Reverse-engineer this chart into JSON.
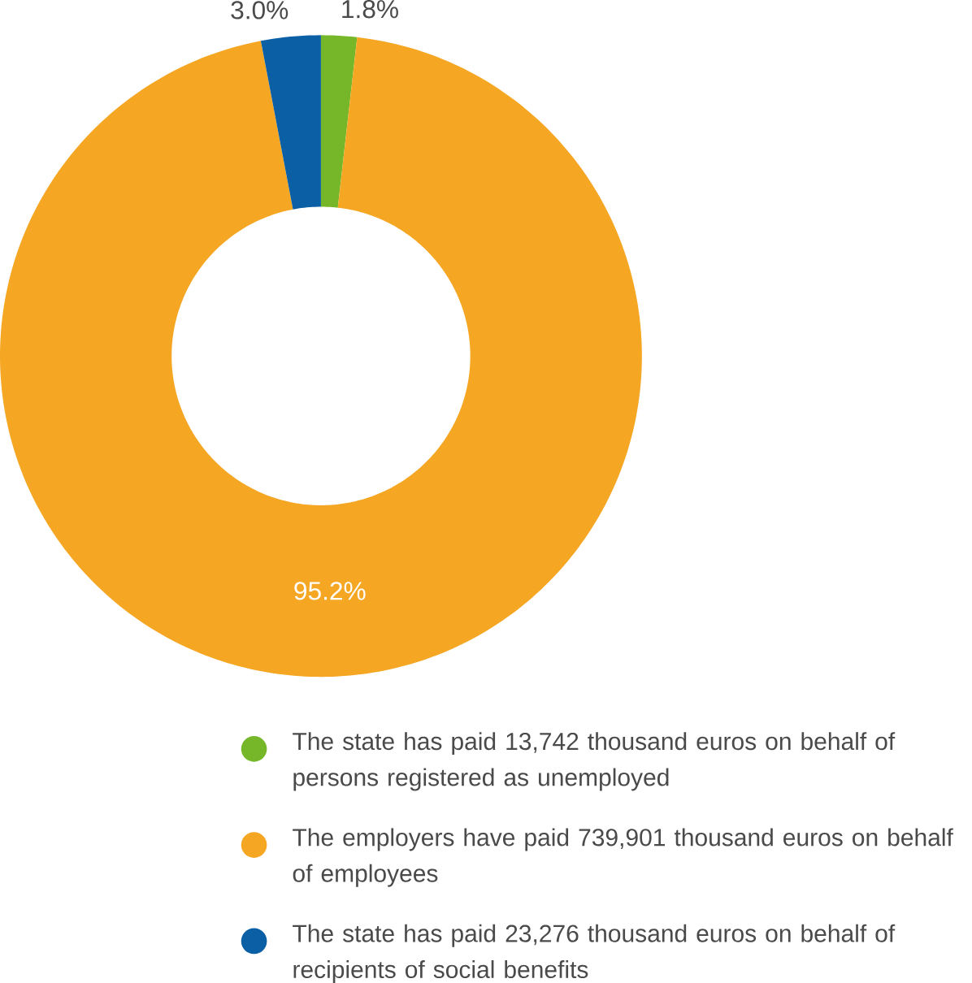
{
  "chart_data": {
    "type": "donut",
    "categories": [
      "The state has paid 13,742 thousand euros on behalf of persons registered as unemployed",
      "The employers have paid 739,901 thousand euros on behalf of employees",
      "The state has paid 23,276 thousand euros on behalf of recipients of social benefits"
    ],
    "values": [
      1.8,
      95.2,
      3.0
    ],
    "colors": [
      "#76b72a",
      "#f5a623",
      "#0b5fa5"
    ],
    "value_labels": [
      "1.8%",
      "95.2%",
      "3.0%"
    ],
    "legend": "bottom"
  }
}
